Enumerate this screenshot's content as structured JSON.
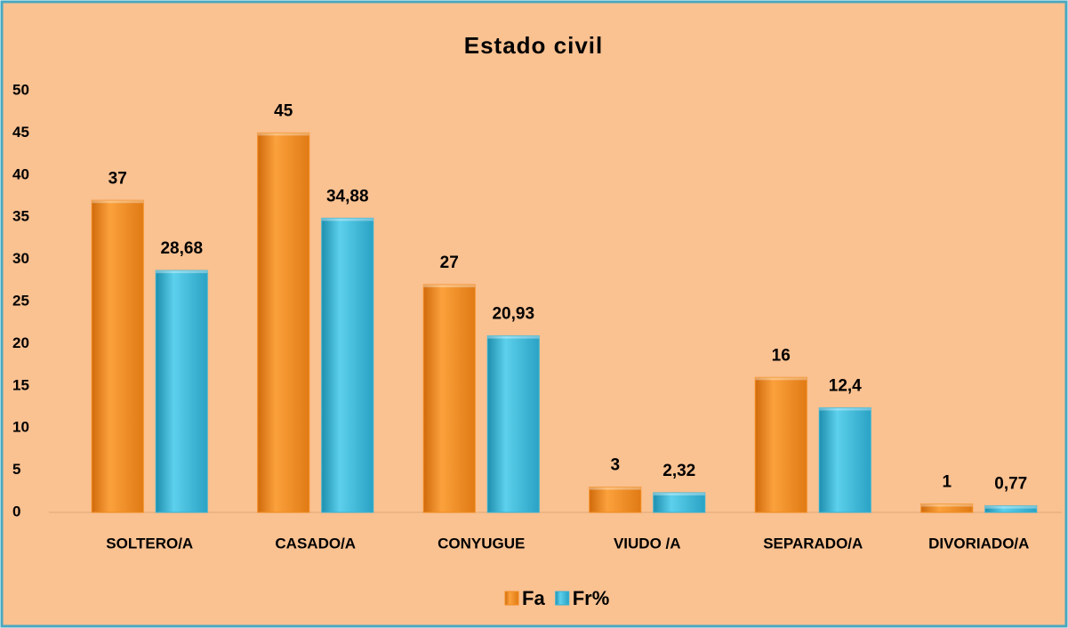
{
  "chart_data": {
    "type": "bar",
    "title": "Estado civil",
    "categories": [
      "SOLTERO/A",
      "CASADO/A",
      "CONYUGUE",
      "VIUDO /A",
      "SEPARADO/A",
      "DIVORIADO/A"
    ],
    "series": [
      {
        "name": "Fa",
        "color": "#f28c1e",
        "values": [
          37,
          45,
          27,
          3,
          16,
          1
        ]
      },
      {
        "name": "Fr%",
        "color": "#36b3d4",
        "values": [
          28.68,
          34.88,
          20.93,
          2.32,
          12.4,
          0.77
        ],
        "value_labels": [
          "28,68",
          "34,88",
          "20,93",
          "2,32",
          "12,4",
          "0,77"
        ]
      }
    ],
    "ylim": [
      0,
      50
    ],
    "yticks": [
      0,
      5,
      10,
      15,
      20,
      25,
      30,
      35,
      40,
      45,
      50
    ],
    "grid": false,
    "legend": "bottom"
  }
}
